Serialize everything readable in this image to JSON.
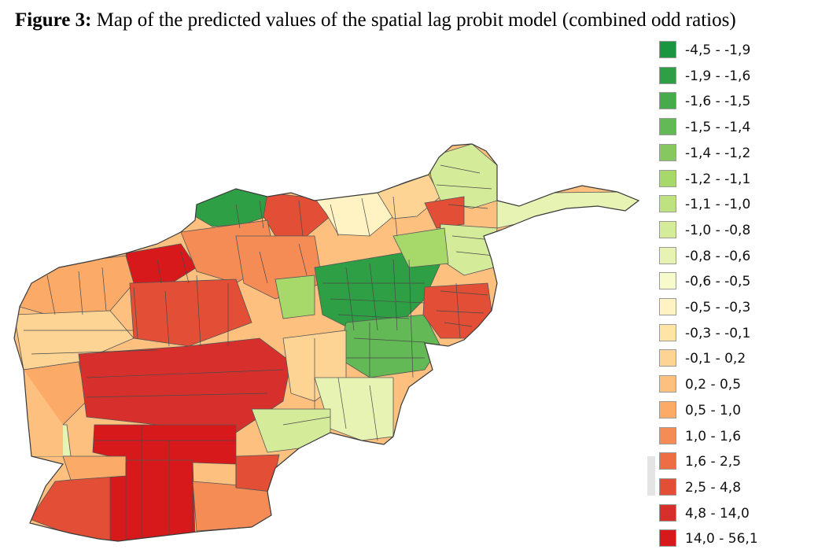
{
  "figure": {
    "label": "Figure 3:",
    "caption": " Map of the predicted values of the spatial lag probit model (combined odd ratios)"
  },
  "legend": {
    "items": [
      {
        "label": "-4,5 - -1,9",
        "color": "#1a9641"
      },
      {
        "label": "-1,9 - -1,6",
        "color": "#2e9f45"
      },
      {
        "label": "-1,6 - -1,5",
        "color": "#47ab4c"
      },
      {
        "label": "-1,5 - -1,4",
        "color": "#63b955"
      },
      {
        "label": "-1,4 - -1,2",
        "color": "#86c85f"
      },
      {
        "label": "-1,2 - -1,1",
        "color": "#a6d96a"
      },
      {
        "label": "-1,1 - -1,0",
        "color": "#bfe280"
      },
      {
        "label": "-1,0 - -0,8",
        "color": "#d4eb9a"
      },
      {
        "label": "-0,8 - -0,6",
        "color": "#e6f3b3"
      },
      {
        "label": "-0,6 - -0,5",
        "color": "#f7fbcc"
      },
      {
        "label": "-0,5 - -0,3",
        "color": "#fff3c4"
      },
      {
        "label": "-0,3 - -0,1",
        "color": "#ffe5a5"
      },
      {
        "label": "-0,1 - 0,2",
        "color": "#fdd494"
      },
      {
        "label": "0,2 - 0,5",
        "color": "#fdc07f"
      },
      {
        "label": "0,5 - 1,0",
        "color": "#fbaa67"
      },
      {
        "label": "1,0 - 1,6",
        "color": "#f58c56"
      },
      {
        "label": "1,6 - 2,5",
        "color": "#ed6d45"
      },
      {
        "label": "2,5 - 4,8",
        "color": "#e24e36"
      },
      {
        "label": "4,8 - 14,0",
        "color": "#d7302c"
      },
      {
        "label": "14,0 - 56,1",
        "color": "#d7191c"
      }
    ]
  }
}
